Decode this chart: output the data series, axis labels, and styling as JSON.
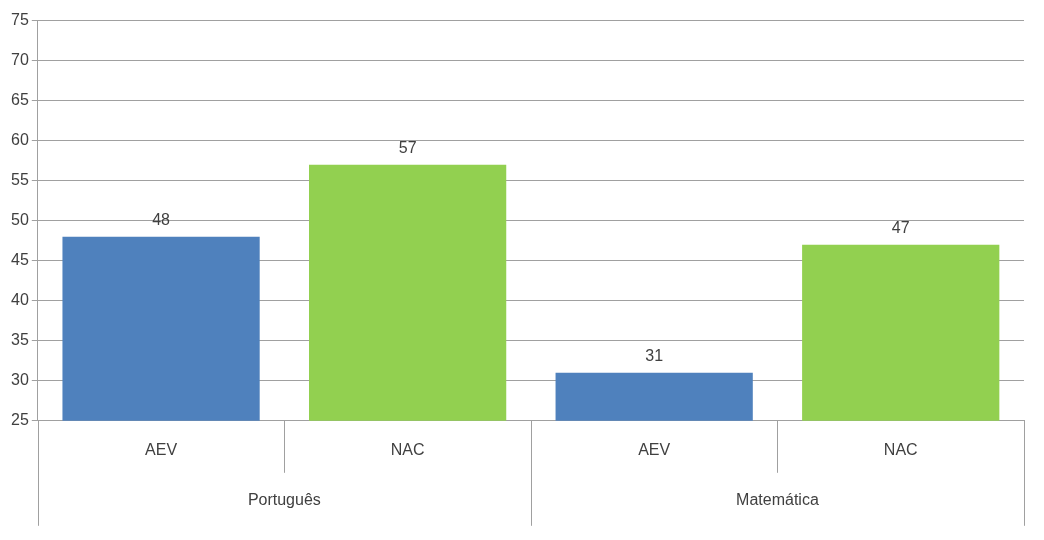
{
  "chart_data": {
    "type": "bar",
    "categories": [
      "AEV",
      "NAC",
      "AEV",
      "NAC"
    ],
    "values": [
      48,
      57,
      31,
      47
    ],
    "colors": [
      "#4f81bd",
      "#92d050",
      "#4f81bd",
      "#92d050"
    ],
    "ylim": [
      25,
      75
    ],
    "yticks": [
      25,
      30,
      35,
      40,
      45,
      50,
      55,
      60,
      65,
      70,
      75
    ],
    "grid": "y",
    "data_labels": true,
    "legend": false,
    "annotations": [
      "Português",
      "Matemática"
    ]
  }
}
